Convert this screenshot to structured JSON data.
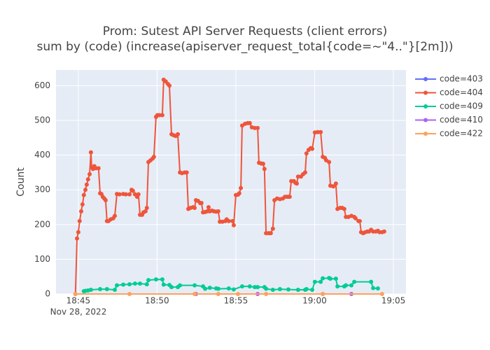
{
  "chart_data": {
    "type": "line",
    "title": "Prom: Sutest API Server Requests (client errors)",
    "subtitle": "sum by (code) (increase(apiserver_request_total{code=~\"4..\"}[2m]))",
    "y_label": "Count",
    "x_date_label": "Nov 28, 2022",
    "xlim": [
      "18:43:35",
      "19:05:48"
    ],
    "xticks": [
      {
        "value": "18:45:00",
        "label": "18:45"
      },
      {
        "value": "18:50:00",
        "label": "18:50"
      },
      {
        "value": "18:55:00",
        "label": "18:55"
      },
      {
        "value": "19:00:00",
        "label": "19:00"
      },
      {
        "value": "19:05:00",
        "label": "19:05"
      }
    ],
    "ylim": [
      0,
      645
    ],
    "yticks": [
      0,
      100,
      200,
      300,
      400,
      500,
      600
    ],
    "grid": true,
    "legend": "right",
    "series": [
      {
        "name": "code=403",
        "color": "#636efa",
        "x": [
          "18:44:49"
        ],
        "values": [
          0
        ]
      },
      {
        "name": "code=404",
        "color": "#ef553b",
        "x": [
          "18:44:49",
          "18:44:55",
          "18:45:00",
          "18:45:05",
          "18:45:11",
          "18:45:16",
          "18:45:21",
          "18:45:27",
          "18:45:32",
          "18:45:37",
          "18:45:43",
          "18:45:48",
          "18:45:51",
          "18:45:56",
          "18:46:01",
          "18:46:07",
          "18:46:17",
          "18:46:23",
          "18:46:28",
          "18:46:33",
          "18:46:39",
          "18:46:44",
          "18:46:49",
          "18:46:55",
          "18:47:03",
          "18:47:13",
          "18:47:19",
          "18:47:27",
          "18:47:37",
          "18:47:51",
          "18:48:01",
          "18:48:15",
          "18:48:23",
          "18:48:28",
          "18:48:36",
          "18:48:44",
          "18:48:49",
          "18:48:55",
          "18:49:03",
          "18:49:08",
          "18:49:16",
          "18:49:21",
          "18:49:27",
          "18:49:35",
          "18:49:43",
          "18:49:48",
          "18:49:56",
          "18:50:01",
          "18:50:09",
          "18:50:20",
          "18:50:25",
          "18:50:33",
          "18:50:41",
          "18:50:47",
          "18:50:55",
          "18:51:03",
          "18:51:11",
          "18:51:19",
          "18:51:27",
          "18:51:35",
          "18:51:45",
          "18:51:53",
          "18:51:59",
          "18:52:07",
          "18:52:17",
          "18:52:23",
          "18:52:28",
          "18:52:36",
          "18:52:44",
          "18:52:49",
          "18:52:55",
          "18:53:03",
          "18:53:11",
          "18:53:16",
          "18:53:21",
          "18:53:29",
          "18:53:37",
          "18:53:45",
          "18:53:53",
          "18:53:59",
          "18:54:09",
          "18:54:20",
          "18:54:25",
          "18:54:33",
          "18:54:47",
          "18:54:52",
          "18:55:00",
          "18:55:08",
          "18:55:13",
          "18:55:19",
          "18:55:24",
          "18:55:35",
          "18:55:45",
          "18:55:53",
          "18:56:01",
          "18:56:12",
          "18:56:23",
          "18:56:28",
          "18:56:36",
          "18:56:44",
          "18:56:49",
          "18:56:55",
          "18:57:05",
          "18:57:13",
          "18:57:21",
          "18:57:27",
          "18:57:37",
          "18:57:48",
          "18:57:59",
          "18:58:07",
          "18:58:15",
          "18:58:20",
          "18:58:25",
          "18:58:31",
          "18:58:41",
          "18:58:47",
          "18:58:52",
          "18:58:57",
          "18:59:08",
          "18:59:16",
          "18:59:24",
          "18:59:29",
          "18:59:37",
          "18:59:45",
          "18:59:51",
          "19:00:01",
          "19:00:12",
          "19:00:23",
          "19:00:31",
          "19:00:39",
          "19:00:44",
          "19:00:55",
          "19:01:00",
          "19:01:11",
          "19:01:21",
          "19:01:27",
          "19:01:37",
          "19:01:45",
          "19:01:53",
          "19:01:59",
          "19:02:09",
          "19:02:20",
          "19:02:31",
          "19:02:36",
          "19:02:47",
          "19:02:52",
          "19:02:57",
          "19:03:05",
          "19:03:13",
          "19:03:21",
          "19:03:27",
          "19:03:35",
          "19:03:43",
          "19:03:53",
          "19:04:01",
          "19:04:07",
          "19:04:17",
          "19:04:25"
        ],
        "values": [
          0,
          160,
          178,
          210,
          238,
          258,
          285,
          300,
          315,
          330,
          345,
          408,
          365,
          360,
          368,
          362,
          362,
          290,
          288,
          280,
          275,
          270,
          210,
          210,
          215,
          218,
          225,
          288,
          287,
          288,
          287,
          287,
          300,
          297,
          287,
          280,
          287,
          228,
          228,
          235,
          238,
          248,
          380,
          385,
          390,
          395,
          510,
          515,
          515,
          515,
          617,
          612,
          605,
          600,
          460,
          457,
          455,
          460,
          350,
          348,
          350,
          350,
          245,
          248,
          250,
          248,
          270,
          268,
          262,
          262,
          235,
          236,
          238,
          250,
          238,
          240,
          238,
          237,
          238,
          208,
          208,
          210,
          215,
          210,
          210,
          198,
          285,
          286,
          290,
          305,
          485,
          490,
          492,
          492,
          480,
          478,
          478,
          378,
          376,
          375,
          360,
          175,
          175,
          175,
          188,
          270,
          275,
          273,
          275,
          280,
          280,
          280,
          280,
          325,
          325,
          320,
          318,
          338,
          338,
          345,
          350,
          405,
          415,
          420,
          418,
          465,
          466,
          466,
          395,
          392,
          385,
          380,
          312,
          310,
          318,
          245,
          248,
          248,
          245,
          222,
          222,
          225,
          222,
          218,
          210,
          210,
          178,
          175,
          178,
          180,
          180,
          185,
          180,
          180,
          182,
          178,
          178,
          180
        ]
      },
      {
        "name": "code=409",
        "color": "#00cc96",
        "x": [
          "18:45:21",
          "18:45:27",
          "18:45:37",
          "18:45:48",
          "18:46:23",
          "18:46:49",
          "18:47:19",
          "18:47:27",
          "18:47:51",
          "18:48:15",
          "18:48:36",
          "18:48:55",
          "18:49:21",
          "18:49:27",
          "18:49:56",
          "18:50:20",
          "18:50:25",
          "18:50:47",
          "18:50:55",
          "18:51:19",
          "18:51:27",
          "18:52:23",
          "18:52:55",
          "18:53:03",
          "18:53:21",
          "18:53:45",
          "18:53:53",
          "18:54:33",
          "18:54:52",
          "18:55:24",
          "18:55:53",
          "18:56:12",
          "18:56:23",
          "18:56:49",
          "18:56:55",
          "18:57:21",
          "18:57:48",
          "18:58:20",
          "18:58:57",
          "18:59:24",
          "18:59:29",
          "18:59:51",
          "19:00:01",
          "19:00:23",
          "19:00:31",
          "19:00:55",
          "19:01:00",
          "19:01:21",
          "19:01:27",
          "19:01:53",
          "19:01:59",
          "19:02:20",
          "19:02:31",
          "19:03:35",
          "19:03:43",
          "19:04:01"
        ],
        "values": [
          8,
          9,
          10,
          12,
          14,
          14,
          12,
          25,
          27,
          28,
          30,
          30,
          28,
          40,
          42,
          42,
          27,
          26,
          20,
          20,
          25,
          25,
          22,
          15,
          18,
          16,
          15,
          16,
          13,
          22,
          22,
          20,
          20,
          20,
          15,
          12,
          14,
          13,
          12,
          12,
          14,
          12,
          35,
          35,
          45,
          46,
          44,
          44,
          22,
          22,
          25,
          25,
          35,
          35,
          17,
          16
        ]
      },
      {
        "name": "code=410",
        "color": "#ab63fa",
        "x": [
          "18:52:28",
          "18:56:23",
          "19:00:31",
          "19:02:20"
        ],
        "values": [
          0,
          0,
          0,
          0
        ]
      },
      {
        "name": "code=422",
        "color": "#ffa15a",
        "x": [
          "18:44:49",
          "18:48:15",
          "18:52:23",
          "18:53:53",
          "18:55:08",
          "18:56:55",
          "19:00:31",
          "19:04:17"
        ],
        "values": [
          0,
          0,
          0,
          0,
          0,
          0,
          0,
          0
        ]
      }
    ]
  }
}
